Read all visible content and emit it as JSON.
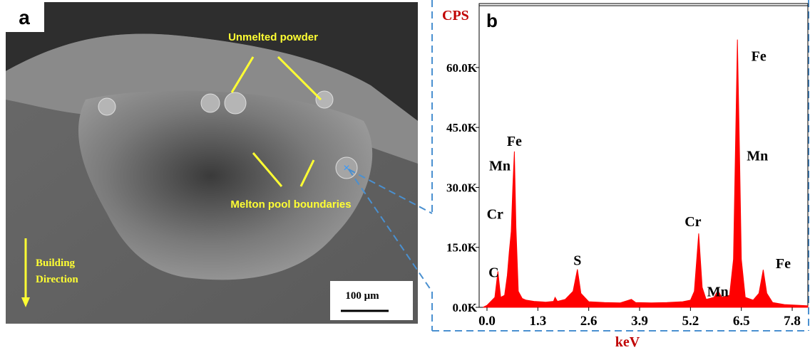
{
  "panel_a": {
    "label": "a",
    "annotations": [
      "Unmelted powder",
      "Melton pool boundaries"
    ],
    "direction": [
      "Building",
      "Direction"
    ],
    "scale_bar": "100 μm"
  },
  "chart_data": {
    "type": "area",
    "label": "b",
    "ylabel": "CPS",
    "xlabel": "keV",
    "color": "#ff0000",
    "x": [
      -0.1,
      0.0,
      0.1,
      0.2,
      0.28,
      0.35,
      0.45,
      0.52,
      0.57,
      0.62,
      0.66,
      0.7,
      0.74,
      0.8,
      0.9,
      1.0,
      1.2,
      1.5,
      1.7,
      1.74,
      1.8,
      2.0,
      2.2,
      2.31,
      2.4,
      2.6,
      3.0,
      3.4,
      3.69,
      3.8,
      4.2,
      4.6,
      5.0,
      5.2,
      5.3,
      5.41,
      5.5,
      5.6,
      5.8,
      5.9,
      6.0,
      6.2,
      6.3,
      6.35,
      6.4,
      6.45,
      6.5,
      6.6,
      6.8,
      6.95,
      7.06,
      7.15,
      7.3,
      7.6,
      8.0,
      8.2
    ],
    "values": [
      0,
      500,
      1500,
      2500,
      9000,
      2500,
      3000,
      8000,
      14000,
      19000,
      30000,
      39000,
      20000,
      4000,
      2200,
      1800,
      1500,
      1300,
      1500,
      2500,
      1500,
      2000,
      4000,
      9500,
      3500,
      1400,
      1200,
      1100,
      2000,
      1200,
      1100,
      1200,
      1400,
      1800,
      4000,
      18500,
      5000,
      2000,
      2500,
      4200,
      2500,
      3000,
      12000,
      40000,
      67000,
      40000,
      12000,
      2500,
      1800,
      3500,
      9400,
      3500,
      1200,
      700,
      500,
      400
    ],
    "xlim": [
      -0.2,
      8.2
    ],
    "ylim": [
      0,
      76000
    ],
    "xticks": [
      {
        "value": 0,
        "label": "0.0"
      },
      1.3,
      2.6,
      3.9,
      5.2,
      6.5,
      7.8
    ],
    "yticks": [
      {
        "value": 0,
        "label": "0.0K"
      },
      {
        "value": 15000,
        "label": "15.0K"
      },
      {
        "value": 30000,
        "label": "30.0K"
      },
      {
        "value": 45000,
        "label": "45.0K"
      },
      {
        "value": 60000,
        "label": "60.0K"
      }
    ],
    "peak_labels": [
      {
        "text": "C",
        "energy": 0.28
      },
      {
        "text": "Cr",
        "energy": 0.57
      },
      {
        "text": "Mn",
        "energy": 0.62
      },
      {
        "text": "Fe",
        "energy": 0.7
      },
      {
        "text": "S",
        "energy": 2.31
      },
      {
        "text": "Cr",
        "energy": 5.41
      },
      {
        "text": "Mn",
        "energy": 5.9
      },
      {
        "text": "Fe",
        "energy": 6.4
      },
      {
        "text": "Mn",
        "energy": 6.4
      },
      {
        "text": "Fe",
        "energy": 7.06
      }
    ]
  }
}
